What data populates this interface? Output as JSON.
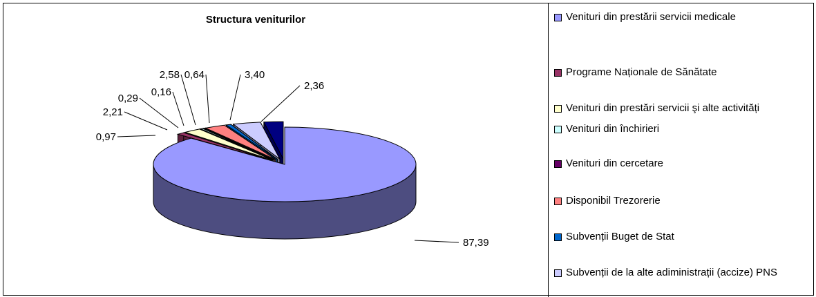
{
  "chart_data": {
    "type": "pie",
    "title": "Structura veniturilor",
    "series": [
      {
        "name": "Venituri din prestării servicii medicale",
        "value_label": "87,39",
        "value": 87.39,
        "color": "#9999ff"
      },
      {
        "name": "Programe Naționale de Sănătate",
        "value_label": "0,97",
        "value": 0.97,
        "color": "#993366"
      },
      {
        "name": "Venituri din prestări servicii şi alte activități",
        "value_label": "2,21",
        "value": 2.21,
        "color": "#ffffcc"
      },
      {
        "name": "Venituri din închirieri",
        "value_label": "0,29",
        "value": 0.29,
        "color": "#ccffff"
      },
      {
        "name": "Venituri din cercetare",
        "value_label": "0,16",
        "value": 0.16,
        "color": "#660066"
      },
      {
        "name": "Disponibil Trezorerie",
        "value_label": "2,58",
        "value": 2.58,
        "color": "#ff8080"
      },
      {
        "name": "Subvenții Buget de Stat",
        "value_label": "0,64",
        "value": 0.64,
        "color": "#0066cc"
      },
      {
        "name": "Subvenții de la alte adiministrații (accize) PNS",
        "value_label": "3,40",
        "value": 3.4,
        "color": "#ccccff"
      },
      {
        "name": "",
        "value_label": "2,36",
        "value": 2.36,
        "color": "#000080"
      }
    ],
    "legend_position": "right"
  }
}
